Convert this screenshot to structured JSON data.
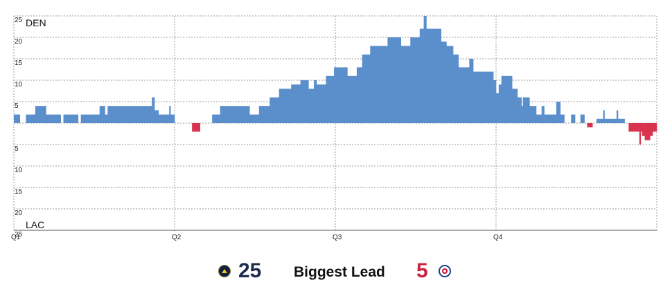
{
  "colors": {
    "den": "#5b8fcb",
    "lac": "#d9344f",
    "grid": "#9a9a9a",
    "axis": "#555555"
  },
  "chart_data": {
    "type": "bar",
    "title": "",
    "team_top": "DEN",
    "team_bottom": "LAC",
    "y_tick_labels": [
      "25",
      "20",
      "15",
      "10",
      "5",
      "5",
      "10",
      "15",
      "20",
      "25"
    ],
    "y_tick_values": [
      25,
      20,
      15,
      10,
      5,
      -5,
      -10,
      -15,
      -20,
      -25
    ],
    "ylim": [
      -25,
      25
    ],
    "xlim": [
      0,
      48
    ],
    "x_ticks": [
      {
        "label": "Q1",
        "minute": 0
      },
      {
        "label": "Q2",
        "minute": 12
      },
      {
        "label": "Q3",
        "minute": 24
      },
      {
        "label": "Q4",
        "minute": 36
      }
    ],
    "grid": true,
    "series": [
      {
        "description": "score margin over game time (positive = DEN leads, negative = LAC leads)",
        "points": [
          [
            0.0,
            2
          ],
          [
            0.45,
            0
          ],
          [
            0.9,
            2
          ],
          [
            1.6,
            4
          ],
          [
            2.4,
            2
          ],
          [
            3.5,
            0
          ],
          [
            3.7,
            2
          ],
          [
            4.8,
            0
          ],
          [
            5.0,
            2
          ],
          [
            6.4,
            4
          ],
          [
            6.8,
            2
          ],
          [
            7.0,
            4
          ],
          [
            10.3,
            6
          ],
          [
            10.5,
            3
          ],
          [
            10.8,
            2
          ],
          [
            11.6,
            4
          ],
          [
            11.7,
            2
          ],
          [
            12.0,
            0
          ],
          [
            13.3,
            -2
          ],
          [
            13.9,
            0
          ],
          [
            14.8,
            2
          ],
          [
            15.4,
            4
          ],
          [
            16.1,
            4
          ],
          [
            17.6,
            2
          ],
          [
            18.3,
            4
          ],
          [
            19.1,
            6
          ],
          [
            19.8,
            8
          ],
          [
            20.7,
            9
          ],
          [
            21.4,
            10
          ],
          [
            22.0,
            8
          ],
          [
            22.4,
            10
          ],
          [
            22.6,
            9
          ],
          [
            23.3,
            11
          ],
          [
            23.9,
            13
          ],
          [
            24.9,
            11
          ],
          [
            25.6,
            13
          ],
          [
            26.0,
            16
          ],
          [
            26.6,
            18
          ],
          [
            27.2,
            18
          ],
          [
            27.9,
            20
          ],
          [
            28.9,
            18
          ],
          [
            29.6,
            20
          ],
          [
            30.3,
            22
          ],
          [
            30.6,
            25
          ],
          [
            30.8,
            22
          ],
          [
            31.9,
            19
          ],
          [
            32.3,
            18
          ],
          [
            32.8,
            16
          ],
          [
            33.2,
            13
          ],
          [
            34.0,
            15
          ],
          [
            34.3,
            12
          ],
          [
            35.8,
            10
          ],
          [
            36.0,
            7
          ],
          [
            36.2,
            9
          ],
          [
            36.4,
            11
          ],
          [
            37.2,
            8
          ],
          [
            37.6,
            6
          ],
          [
            37.9,
            4
          ],
          [
            38.0,
            6
          ],
          [
            38.5,
            4
          ],
          [
            39.0,
            2
          ],
          [
            39.4,
            4
          ],
          [
            39.6,
            2
          ],
          [
            40.5,
            5
          ],
          [
            40.8,
            2
          ],
          [
            41.1,
            0
          ],
          [
            41.6,
            2
          ],
          [
            41.9,
            0
          ],
          [
            42.3,
            2
          ],
          [
            42.6,
            0
          ],
          [
            42.8,
            -1
          ],
          [
            43.2,
            0
          ],
          [
            43.5,
            1
          ],
          [
            44.0,
            3
          ],
          [
            44.1,
            1
          ],
          [
            45.0,
            3
          ],
          [
            45.1,
            1
          ],
          [
            45.6,
            0
          ],
          [
            45.9,
            -2
          ],
          [
            46.7,
            -5
          ],
          [
            46.8,
            -2
          ],
          [
            46.9,
            -3
          ],
          [
            47.1,
            -4
          ],
          [
            47.5,
            -3
          ],
          [
            47.7,
            -2
          ],
          [
            48.0,
            -2
          ]
        ]
      }
    ]
  },
  "legend": {
    "den_logo_icon": "nuggets-logo-icon",
    "den_value": "25",
    "title": "Biggest Lead",
    "lac_value": "5",
    "lac_logo_icon": "clippers-logo-icon"
  }
}
